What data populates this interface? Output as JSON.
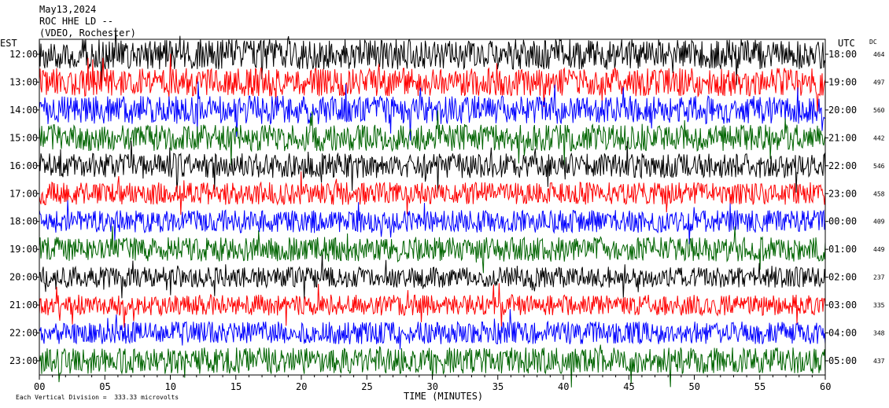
{
  "header": {
    "date": "May13,2024",
    "station": "ROC HHE LD --",
    "location": "(VDEO, Rochester)"
  },
  "footer": {
    "scale_note": "Each Vertical Division =  333.33 microvolts"
  },
  "chart_data": {
    "type": "line",
    "title": "",
    "xlabel": "TIME (MINUTES)",
    "left_axis_label": "EST",
    "right_axis_label": "UTC",
    "dc_label": "DC",
    "xlim": [
      0,
      60
    ],
    "x_ticks": [
      "00",
      "05",
      "10",
      "15",
      "20",
      "25",
      "30",
      "35",
      "40",
      "45",
      "50",
      "55",
      "60"
    ],
    "grid": false,
    "colors": [
      "#000000",
      "#ff0000",
      "#0000ff",
      "#006400"
    ],
    "rows": [
      {
        "est": "12:00",
        "utc": "18:00",
        "dc": "464",
        "amp": 1.6
      },
      {
        "est": "13:00",
        "utc": "19:00",
        "dc": "497",
        "amp": 1.5
      },
      {
        "est": "14:00",
        "utc": "20:00",
        "dc": "560",
        "amp": 1.5
      },
      {
        "est": "15:00",
        "utc": "21:00",
        "dc": "442",
        "amp": 1.4
      },
      {
        "est": "16:00",
        "utc": "22:00",
        "dc": "546",
        "amp": 1.3
      },
      {
        "est": "17:00",
        "utc": "23:00",
        "dc": "458",
        "amp": 1.2
      },
      {
        "est": "18:00",
        "utc": "00:00",
        "dc": "409",
        "amp": 1.2
      },
      {
        "est": "19:00",
        "utc": "01:00",
        "dc": "449",
        "amp": 1.3
      },
      {
        "est": "20:00",
        "utc": "02:00",
        "dc": "237",
        "amp": 1.1
      },
      {
        "est": "21:00",
        "utc": "03:00",
        "dc": "335",
        "amp": 1.1
      },
      {
        "est": "22:00",
        "utc": "04:00",
        "dc": "348",
        "amp": 1.2
      },
      {
        "est": "23:00",
        "utc": "05:00",
        "dc": "437",
        "amp": 1.4
      }
    ]
  }
}
